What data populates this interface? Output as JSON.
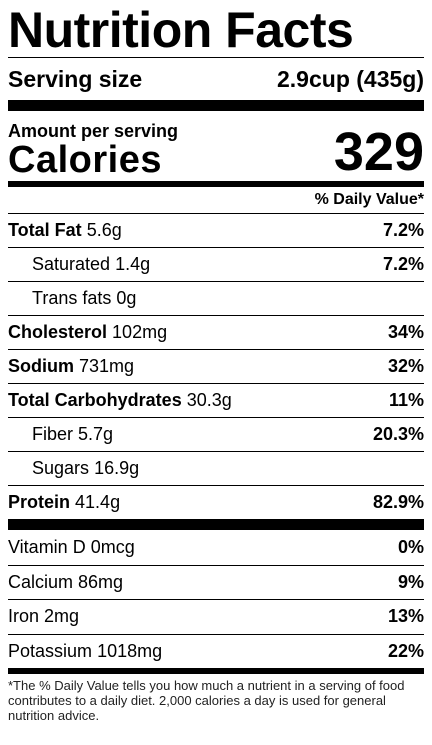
{
  "title": "Nutrition Facts",
  "serving": {
    "label": "Serving size",
    "value": "2.9cup (435g)"
  },
  "calories": {
    "amount_label": "Amount per serving",
    "label": "Calories",
    "value": "329"
  },
  "dv_header": "% Daily Value*",
  "nutrients": [
    {
      "name": "Total Fat",
      "amount": "5.6g",
      "pct": "7.2%",
      "bold": true,
      "indent": false
    },
    {
      "name": "Saturated",
      "amount": "1.4g",
      "pct": "7.2%",
      "bold": false,
      "indent": true
    },
    {
      "name": "Trans fats",
      "amount": "0g",
      "pct": "",
      "bold": false,
      "indent": true
    },
    {
      "name": "Cholesterol",
      "amount": "102mg",
      "pct": "34%",
      "bold": true,
      "indent": false
    },
    {
      "name": "Sodium",
      "amount": "731mg",
      "pct": "32%",
      "bold": true,
      "indent": false
    },
    {
      "name": "Total Carbohydrates",
      "amount": "30.3g",
      "pct": "11%",
      "bold": true,
      "indent": false
    },
    {
      "name": "Fiber",
      "amount": "5.7g",
      "pct": "20.3%",
      "bold": false,
      "indent": true
    },
    {
      "name": "Sugars",
      "amount": "16.9g",
      "pct": "",
      "bold": false,
      "indent": true
    },
    {
      "name": "Protein",
      "amount": "41.4g",
      "pct": "82.9%",
      "bold": true,
      "indent": false
    }
  ],
  "vitamins": [
    {
      "name": "Vitamin D",
      "amount": "0mcg",
      "pct": "0%"
    },
    {
      "name": "Calcium",
      "amount": "86mg",
      "pct": "9%"
    },
    {
      "name": "Iron",
      "amount": "2mg",
      "pct": "13%"
    },
    {
      "name": "Potassium",
      "amount": "1018mg",
      "pct": "22%"
    }
  ],
  "footnote": "*The % Daily Value tells you how much a nutrient in a serving of food contributes to a daily diet. 2,000 calories a day is used for general nutrition advice."
}
